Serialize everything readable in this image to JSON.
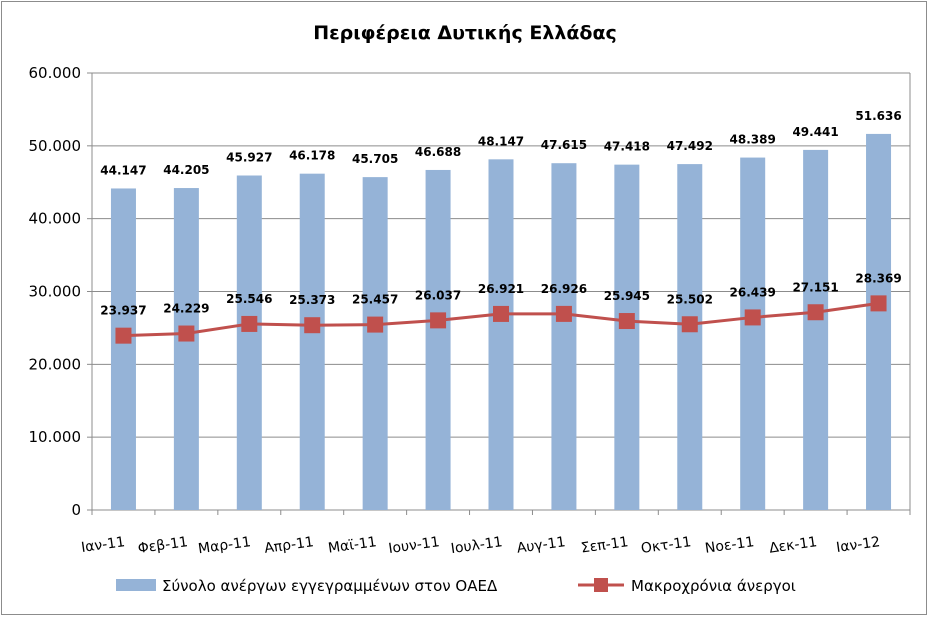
{
  "chart_data": {
    "type": "bar",
    "title": "Περιφέρεια Δυτικής Ελλάδας",
    "categories": [
      "Ιαν-11",
      "Φεβ-11",
      "Μαρ-11",
      "Απρ-11",
      "Μαϊ-11",
      "Ιουν-11",
      "Ιουλ-11",
      "Αυγ-11",
      "Σεπ-11",
      "Οκτ-11",
      "Νοε-11",
      "Δεκ-11",
      "Ιαν-12"
    ],
    "series": [
      {
        "name": "Σύνολο ανέργων εγγεγραμμένων στον ΟΑΕΔ",
        "type": "bar",
        "color": "#95b3d7",
        "values": [
          44147,
          44205,
          45927,
          46178,
          45705,
          46688,
          48147,
          47615,
          47418,
          47492,
          48389,
          49441,
          51636
        ],
        "labels": [
          "44.147",
          "44.205",
          "45.927",
          "46.178",
          "45.705",
          "46.688",
          "48.147",
          "47.615",
          "47.418",
          "47.492",
          "48.389",
          "49.441",
          "51.636"
        ]
      },
      {
        "name": "Μακροχρόνια άνεργοι",
        "type": "line",
        "color": "#c0504d",
        "values": [
          23937,
          24229,
          25546,
          25373,
          25457,
          26037,
          26921,
          26926,
          25945,
          25502,
          26439,
          27151,
          28369
        ],
        "labels": [
          "23.937",
          "24.229",
          "25.546",
          "25.373",
          "25.457",
          "26.037",
          "26.921",
          "26.926",
          "25.945",
          "25.502",
          "26.439",
          "27.151",
          "28.369"
        ]
      }
    ],
    "ylim": [
      0,
      60000
    ],
    "yticks": [
      0,
      10000,
      20000,
      30000,
      40000,
      50000,
      60000
    ],
    "ytick_labels": [
      "0",
      "10.000",
      "20.000",
      "30.000",
      "40.000",
      "50.000",
      "60.000"
    ],
    "grid": true,
    "legend_position": "bottom"
  }
}
